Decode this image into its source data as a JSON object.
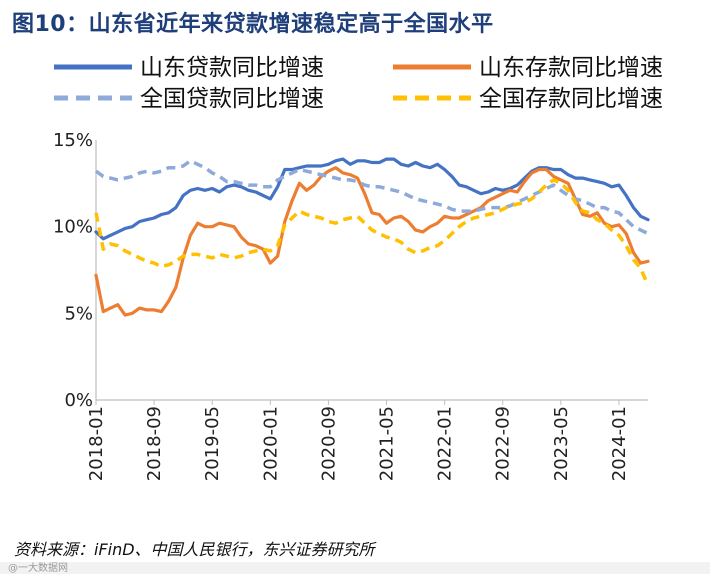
{
  "title": "图10：山东省近年来贷款增速稳定高于全国水平",
  "source": "资料来源：iFinD、中国人民银行，东兴证券研究所",
  "watermark": "@一大数据网",
  "chart_data": {
    "type": "line",
    "title": "图10：山东省近年来贷款增速稳定高于全国水平",
    "xlabel": "",
    "ylabel": "",
    "ylim": [
      0,
      15
    ],
    "yticks": [
      "0%",
      "5%",
      "10%",
      "15%"
    ],
    "ytick_values": [
      0,
      5,
      10,
      15
    ],
    "x_tick_labels": [
      "2018-01",
      "2018-09",
      "2019-05",
      "2020-01",
      "2020-09",
      "2021-05",
      "2022-01",
      "2022-09",
      "2023-05",
      "2024-01"
    ],
    "x_tick_index": [
      0,
      8,
      16,
      24,
      32,
      40,
      48,
      56,
      64,
      72
    ],
    "x_count": 77,
    "grid": false,
    "legend_position": "top",
    "series": [
      {
        "name": "山东贷款同比增速",
        "color": "#4472c4",
        "style": "solid",
        "values": [
          9.7,
          9.3,
          9.5,
          9.7,
          9.9,
          10.0,
          10.3,
          10.4,
          10.5,
          10.7,
          10.8,
          11.1,
          11.8,
          12.1,
          12.2,
          12.1,
          12.2,
          12.0,
          12.3,
          12.4,
          12.3,
          12.1,
          12.0,
          11.8,
          11.6,
          12.3,
          13.3,
          13.3,
          13.4,
          13.5,
          13.5,
          13.5,
          13.6,
          13.8,
          13.9,
          13.6,
          13.8,
          13.8,
          13.7,
          13.7,
          13.9,
          13.9,
          13.6,
          13.5,
          13.7,
          13.5,
          13.4,
          13.6,
          13.3,
          12.9,
          12.4,
          12.3,
          12.1,
          11.9,
          12.0,
          12.2,
          12.1,
          12.2,
          12.4,
          12.8,
          13.2,
          13.4,
          13.4,
          13.3,
          13.3,
          13.0,
          12.8,
          12.8,
          12.7,
          12.6,
          12.5,
          12.3,
          12.4,
          11.8,
          11.1,
          10.6,
          10.4
        ],
        "dashed": false
      },
      {
        "name": "山东存款同比增速",
        "color": "#ed7d31",
        "style": "solid",
        "values": [
          7.2,
          5.1,
          5.3,
          5.5,
          4.9,
          5.0,
          5.3,
          5.2,
          5.2,
          5.1,
          5.7,
          6.5,
          8.2,
          9.5,
          10.2,
          10.0,
          10.0,
          10.2,
          10.1,
          10.0,
          9.4,
          9.0,
          8.9,
          8.7,
          7.9,
          8.3,
          10.3,
          11.5,
          12.5,
          12.1,
          12.4,
          12.9,
          13.2,
          13.4,
          13.1,
          13.0,
          12.8,
          11.9,
          10.8,
          10.7,
          10.2,
          10.5,
          10.6,
          10.3,
          9.8,
          9.7,
          10.0,
          10.2,
          10.6,
          10.5,
          10.5,
          10.7,
          10.9,
          11.1,
          11.5,
          11.7,
          11.9,
          12.1,
          12.0,
          12.6,
          13.1,
          13.3,
          13.3,
          12.9,
          12.7,
          12.5,
          11.6,
          10.7,
          10.6,
          10.8,
          10.2,
          10.0,
          10.1,
          9.6,
          8.5,
          7.9,
          8.0
        ],
        "dashed": false
      },
      {
        "name": "全国贷款同比增速",
        "color": "#8eaadb",
        "style": "dashed",
        "values": [
          13.2,
          12.9,
          12.8,
          12.7,
          12.8,
          12.9,
          13.1,
          13.2,
          13.1,
          13.2,
          13.4,
          13.4,
          13.5,
          13.8,
          13.6,
          13.4,
          13.1,
          12.9,
          12.6,
          12.6,
          12.5,
          12.4,
          12.4,
          12.3,
          12.3,
          12.7,
          12.9,
          13.1,
          13.3,
          13.2,
          13.1,
          13.0,
          12.9,
          12.8,
          12.7,
          12.7,
          12.6,
          12.4,
          12.3,
          12.3,
          12.2,
          12.1,
          12.0,
          11.8,
          11.6,
          11.5,
          11.4,
          11.3,
          11.2,
          11.0,
          10.9,
          10.9,
          10.9,
          11.0,
          11.1,
          11.1,
          11.1,
          11.2,
          11.4,
          11.6,
          11.8,
          12.0,
          12.2,
          12.4,
          12.1,
          11.8,
          11.6,
          11.5,
          11.3,
          11.1,
          11.1,
          10.9,
          10.8,
          10.4,
          10.0,
          9.8,
          9.6
        ],
        "dashed": true
      },
      {
        "name": "全国存款同比增速",
        "color": "#ffc000",
        "style": "dashed",
        "values": [
          10.8,
          8.7,
          9.0,
          8.9,
          8.6,
          8.4,
          8.2,
          8.0,
          7.9,
          7.7,
          7.8,
          8.0,
          8.3,
          8.4,
          8.4,
          8.3,
          8.2,
          8.4,
          8.3,
          8.2,
          8.3,
          8.5,
          8.6,
          8.7,
          8.6,
          8.9,
          10.1,
          10.5,
          10.9,
          10.7,
          10.6,
          10.5,
          10.3,
          10.2,
          10.4,
          10.5,
          10.6,
          10.2,
          9.8,
          9.6,
          9.4,
          9.3,
          9.1,
          8.7,
          8.5,
          8.6,
          8.8,
          8.9,
          9.2,
          9.6,
          10.0,
          10.3,
          10.5,
          10.6,
          10.7,
          10.8,
          11.0,
          11.2,
          11.3,
          11.4,
          11.6,
          12.0,
          12.4,
          12.7,
          12.5,
          12.1,
          11.4,
          10.9,
          10.8,
          10.4,
          10.2,
          9.8,
          9.5,
          8.9,
          8.1,
          7.6,
          6.6
        ],
        "dashed": true
      }
    ]
  }
}
